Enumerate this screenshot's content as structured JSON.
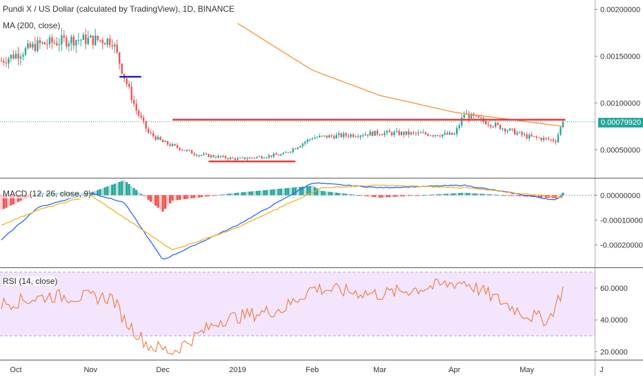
{
  "main": {
    "title": "Pundi X / US Dollar (calculated by TradingView), 1D, BINANCE",
    "ma_label": "MA (200, close)",
    "last_price_label": "0.00079920"
  },
  "macd": {
    "label": "MACD (12, 26, close, 9)"
  },
  "rsi": {
    "label": "RSI (14, close)"
  },
  "colors": {
    "up": "#26a69a",
    "down": "#ef5350",
    "ma": "#f59d50",
    "macd_line": "#2962ff",
    "signal_line": "#f2b31e",
    "rsi_line": "#ef7a3a",
    "rsi_band": "#f3e5fc",
    "support_line": "#e53935",
    "marker": "#1a23c6"
  },
  "chart_data": [
    {
      "type": "candlestick",
      "title": "Pundi X / US Dollar (calculated by TradingView), 1D, BINANCE",
      "x_ticks": [
        "Oct",
        "Nov",
        "Dec",
        "2019",
        "Feb",
        "Mar",
        "Apr",
        "May",
        "J"
      ],
      "y_ticks": [
        "0.00200000",
        "0.00150000",
        "0.00100000",
        "0.00050000"
      ],
      "ylim": [
        0.0002,
        0.0021
      ],
      "last_price": 0.0007992,
      "closes_approx": [
        {
          "date": "2018-09-25",
          "value": 0.00145
        },
        {
          "date": "2018-10-10",
          "value": 0.00162
        },
        {
          "date": "2018-10-25",
          "value": 0.00168
        },
        {
          "date": "2018-11-10",
          "value": 0.00167
        },
        {
          "date": "2018-11-15",
          "value": 0.00128
        },
        {
          "date": "2018-11-20",
          "value": 0.00092
        },
        {
          "date": "2018-11-25",
          "value": 0.00068
        },
        {
          "date": "2018-12-01",
          "value": 0.00058
        },
        {
          "date": "2018-12-15",
          "value": 0.00045
        },
        {
          "date": "2019-01-01",
          "value": 0.0004
        },
        {
          "date": "2019-01-20",
          "value": 0.00045
        },
        {
          "date": "2019-02-01",
          "value": 0.00063
        },
        {
          "date": "2019-03-01",
          "value": 0.00068
        },
        {
          "date": "2019-04-01",
          "value": 0.00066
        },
        {
          "date": "2019-04-05",
          "value": 0.00088
        },
        {
          "date": "2019-05-01",
          "value": 0.00064
        },
        {
          "date": "2019-05-13",
          "value": 0.0006
        },
        {
          "date": "2019-05-16",
          "value": 0.0008
        }
      ],
      "ma200_approx": [
        {
          "date": "2019-01-01",
          "value": 0.00185
        },
        {
          "date": "2019-02-01",
          "value": 0.00135
        },
        {
          "date": "2019-03-01",
          "value": 0.00108
        },
        {
          "date": "2019-04-01",
          "value": 0.0009
        },
        {
          "date": "2019-05-16",
          "value": 0.00075
        }
      ],
      "annotations": [
        {
          "type": "hline",
          "from": "2018-12-05",
          "to": "2019-05-17",
          "value": 0.00082
        },
        {
          "type": "hline",
          "from": "2018-12-20",
          "to": "2019-01-25",
          "value": 0.000375
        },
        {
          "type": "hline",
          "from": "2018-11-13",
          "to": "2018-11-22",
          "value": 0.00128
        }
      ]
    },
    {
      "type": "line",
      "title": "MACD (12, 26, close, 9)",
      "y_ticks": [
        "0.00000000",
        "-0.00010000",
        "-0.00020000"
      ],
      "ylim": [
        -0.00029,
        7e-05
      ],
      "series": [
        {
          "name": "MACD",
          "values_approx": [
            {
              "date": "2018-09-25",
              "value": -0.00018
            },
            {
              "date": "2018-10-10",
              "value": -5e-05
            },
            {
              "date": "2018-11-01",
              "value": 1e-05
            },
            {
              "date": "2018-11-15",
              "value": -3e-05
            },
            {
              "date": "2018-12-01",
              "value": -0.00026
            },
            {
              "date": "2019-01-01",
              "value": -0.00012
            },
            {
              "date": "2019-02-01",
              "value": 5e-05
            },
            {
              "date": "2019-03-01",
              "value": 3e-05
            },
            {
              "date": "2019-04-05",
              "value": 4e-05
            },
            {
              "date": "2019-05-13",
              "value": -2e-05
            },
            {
              "date": "2019-05-16",
              "value": 0.0
            }
          ]
        },
        {
          "name": "Signal",
          "values_approx": [
            {
              "date": "2018-09-25",
              "value": -0.00012
            },
            {
              "date": "2018-10-10",
              "value": -6e-05
            },
            {
              "date": "2018-11-01",
              "value": 0.0
            },
            {
              "date": "2018-12-05",
              "value": -0.00022
            },
            {
              "date": "2019-01-01",
              "value": -0.00013
            },
            {
              "date": "2019-02-05",
              "value": 3e-05
            },
            {
              "date": "2019-03-01",
              "value": 4e-05
            },
            {
              "date": "2019-04-05",
              "value": 3e-05
            },
            {
              "date": "2019-05-16",
              "value": -1e-05
            }
          ]
        }
      ]
    },
    {
      "type": "line",
      "title": "RSI (14, close)",
      "y_ticks": [
        "60.0000",
        "40.0000",
        "20.0000"
      ],
      "ylim": [
        15,
        73
      ],
      "band": [
        30,
        70
      ],
      "series": [
        {
          "name": "RSI",
          "values_approx": [
            {
              "date": "2018-09-25",
              "value": 50
            },
            {
              "date": "2018-10-15",
              "value": 55
            },
            {
              "date": "2018-11-10",
              "value": 54
            },
            {
              "date": "2018-11-15",
              "value": 40
            },
            {
              "date": "2018-11-25",
              "value": 24
            },
            {
              "date": "2018-12-05",
              "value": 20
            },
            {
              "date": "2018-12-25",
              "value": 40
            },
            {
              "date": "2019-01-20",
              "value": 47
            },
            {
              "date": "2019-02-01",
              "value": 60
            },
            {
              "date": "2019-03-01",
              "value": 56
            },
            {
              "date": "2019-04-05",
              "value": 64
            },
            {
              "date": "2019-05-01",
              "value": 43
            },
            {
              "date": "2019-05-10",
              "value": 40
            },
            {
              "date": "2019-05-16",
              "value": 59
            }
          ]
        }
      ]
    }
  ]
}
